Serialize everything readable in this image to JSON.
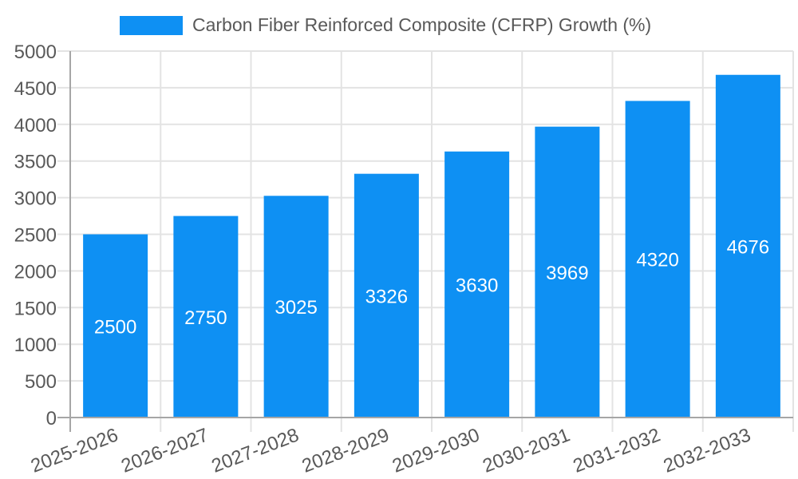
{
  "chart_data": {
    "type": "bar",
    "title": "Carbon Fiber Reinforced Composite (CFRP) Growth (%)",
    "xlabel": "",
    "ylabel": "",
    "categories": [
      "2025-2026",
      "2026-2027",
      "2027-2028",
      "2028-2029",
      "2029-2030",
      "2030-2031",
      "2031-2032",
      "2032-2033"
    ],
    "values": [
      2500,
      2750,
      3025,
      3326,
      3630,
      3969,
      4320,
      4676
    ],
    "bar_value_labels": [
      "2500",
      "2750",
      "3025",
      "3326",
      "3630",
      "3969",
      "4320",
      "4676"
    ],
    "ylim": [
      0,
      5000
    ],
    "ytick_step": 500,
    "ytick_labels": [
      "0",
      "500",
      "1000",
      "1500",
      "2000",
      "2500",
      "3000",
      "3500",
      "4000",
      "4500",
      "5000"
    ],
    "grid": true,
    "legend_position": "top",
    "colors": {
      "bar": "#0e90f3",
      "bar_label": "#ffffff",
      "axis_text": "#595959",
      "grid_line": "#e3e3e3",
      "axis_line": "#a6a6a6",
      "background": "#ffffff"
    }
  }
}
